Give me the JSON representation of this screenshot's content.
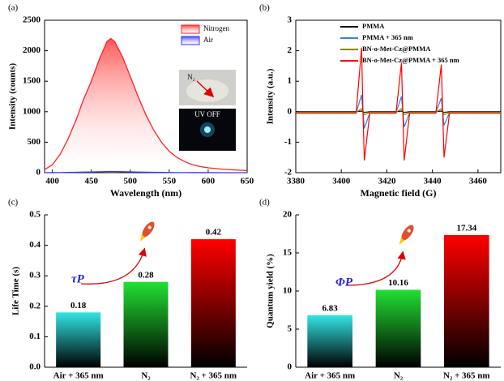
{
  "chart_data": [
    {
      "type": "area",
      "panel_label": "(a)",
      "xlabel": "Wavelength (nm)",
      "ylabel": "Intensity (counts)",
      "x": [
        390,
        400,
        410,
        420,
        430,
        440,
        450,
        460,
        470,
        475,
        480,
        490,
        500,
        510,
        520,
        530,
        540,
        550,
        560,
        570,
        580,
        590,
        600,
        620,
        640,
        650
      ],
      "series": [
        {
          "name": "Nitrogen",
          "color": "#ff2020",
          "fill": true,
          "values": [
            50,
            130,
            300,
            550,
            850,
            1200,
            1500,
            1850,
            2150,
            2200,
            2150,
            1900,
            1580,
            1250,
            950,
            700,
            500,
            350,
            250,
            180,
            130,
            100,
            80,
            55,
            40,
            35
          ]
        },
        {
          "name": "Air",
          "color": "#3333ff",
          "fill": false,
          "values": [
            0,
            1,
            2,
            4,
            6,
            9,
            12,
            15,
            18,
            19,
            18,
            16,
            13,
            10,
            8,
            6,
            4,
            3,
            2,
            2,
            1,
            1,
            1,
            0,
            0,
            0
          ]
        }
      ],
      "xlim": [
        390,
        650
      ],
      "xticks": [
        400,
        450,
        500,
        550,
        600,
        650
      ],
      "ylim": [
        0,
        2500
      ],
      "yticks": [
        0,
        500,
        1000,
        1500,
        2000,
        2500
      ],
      "legend": "upper right",
      "frame": "box",
      "annotations": [
        "N₂",
        "UV OFF"
      ]
    },
    {
      "type": "line",
      "panel_label": "(b)",
      "xlabel": "Magnetic field (G)",
      "ylabel": "Intensity (a.u.)",
      "x": [
        3380,
        3406.5,
        3408.9,
        3409.5,
        3410.1,
        3412.5,
        3424,
        3426.4,
        3427,
        3427.6,
        3430,
        3441.5,
        3443.9,
        3444.5,
        3445.1,
        3447.5,
        3470
      ],
      "series": [
        {
          "name": "PMMA",
          "color": "#000000",
          "values": [
            0,
            0,
            0.02,
            0,
            -0.02,
            0,
            0,
            0.02,
            0,
            -0.02,
            0,
            0,
            0.02,
            0,
            -0.02,
            0,
            0
          ]
        },
        {
          "name": "PMMA + 365 nm",
          "color": "#3a7fe0",
          "values": [
            -0.03,
            -0.03,
            0.55,
            0,
            -0.55,
            -0.03,
            -0.03,
            0.5,
            0,
            -0.5,
            -0.03,
            -0.03,
            0.45,
            0,
            -0.45,
            -0.03,
            -0.03
          ]
        },
        {
          "name": "BN-o-Met-Cz@PMMA",
          "color": "#8a8a00",
          "values": [
            -0.02,
            -0.02,
            0.1,
            0,
            -0.1,
            -0.02,
            -0.02,
            0.1,
            0,
            -0.1,
            -0.02,
            -0.02,
            0.1,
            0,
            -0.1,
            -0.02,
            -0.02
          ]
        },
        {
          "name": "BN-o-Met-Cz@PMMA + 365 nm",
          "color": "#ff0000",
          "values": [
            -0.05,
            -0.05,
            2.1,
            0,
            -1.6,
            -0.05,
            -0.05,
            1.6,
            0,
            -1.6,
            -0.05,
            -0.05,
            1.55,
            0,
            -1.5,
            -0.05,
            -0.05
          ]
        }
      ],
      "xlim": [
        3380,
        3470
      ],
      "xticks": [
        3380,
        3400,
        3420,
        3440,
        3460
      ],
      "ylim": [
        -2,
        3
      ],
      "yticks": [
        -2,
        -1,
        0,
        1,
        2,
        3
      ],
      "legend": "upper right",
      "frame": "box"
    },
    {
      "type": "bar",
      "panel_label": "(c)",
      "ylabel": "Life Time (s)",
      "categories": [
        "Air + 365 nm",
        "N₂",
        "N₂ + 365 nm"
      ],
      "values": [
        0.18,
        0.28,
        0.42
      ],
      "colors": [
        "#33e6e6",
        "#22e033",
        "#ff0000"
      ],
      "bar_gradient_to": "#000000",
      "ylim": [
        0,
        0.5
      ],
      "yticks": [
        {
          "value": 0,
          "label": "0.0"
        },
        0.1,
        0.2,
        0.3,
        0.4,
        0.5
      ],
      "frame": "axes",
      "annotations": [
        "τP"
      ]
    },
    {
      "type": "bar",
      "panel_label": "(d)",
      "ylabel": "Quantum yield (%)",
      "categories": [
        "Air + 365 nm",
        "N₂",
        "N₂ + 365 nm"
      ],
      "values": [
        6.83,
        10.16,
        17.34
      ],
      "colors": [
        "#33e6e6",
        "#22e033",
        "#ff0000"
      ],
      "bar_gradient_to": "#000000",
      "ylim": [
        0,
        20
      ],
      "yticks": [
        0,
        5,
        10,
        15,
        20
      ],
      "frame": "axes",
      "annotations": [
        "ΦP"
      ]
    }
  ]
}
